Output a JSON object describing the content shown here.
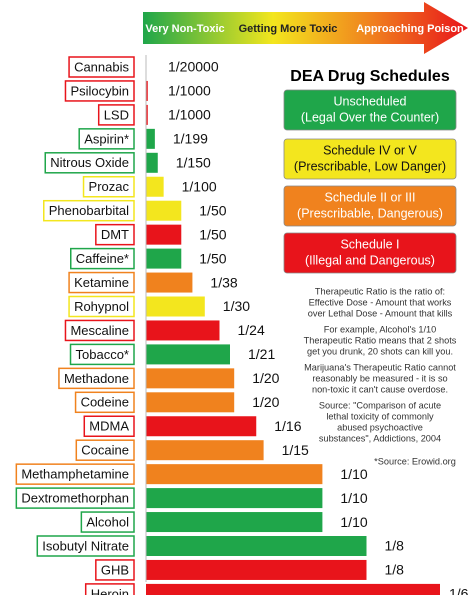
{
  "chart_data": {
    "type": "bar",
    "orientation": "horizontal",
    "title": "DEA Drug Schedules",
    "header": [
      "Very Non-Toxic",
      "Getting More Toxic",
      "Approaching Poison"
    ],
    "categories": [
      "Cannabis",
      "Psilocybin",
      "LSD",
      "Aspirin*",
      "Nitrous Oxide",
      "Prozac",
      "Phenobarbital",
      "DMT",
      "Caffeine*",
      "Ketamine",
      "Rohypnol",
      "Mescaline",
      "Tobacco*",
      "Methadone",
      "Codeine",
      "MDMA",
      "Cocaine",
      "Methamphetamine",
      "Dextromethorphan",
      "Alcohol",
      "Isobutyl Nitrate",
      "GHB",
      "Heroin"
    ],
    "values": [
      5e-05,
      0.001,
      0.001,
      0.005025,
      0.006667,
      0.01,
      0.02,
      0.02,
      0.02,
      0.026316,
      0.033333,
      0.041667,
      0.047619,
      0.05,
      0.05,
      0.0625,
      0.066667,
      0.1,
      0.1,
      0.1,
      0.125,
      0.125,
      0.166667
    ],
    "value_labels": [
      "1/20000",
      "1/1000",
      "1/1000",
      "1/199",
      "1/150",
      "1/100",
      "1/50",
      "1/50",
      "1/50",
      "1/38",
      "1/30",
      "1/24",
      "1/21",
      "1/20",
      "1/20",
      "1/16",
      "1/15",
      "1/10",
      "1/10",
      "1/10",
      "1/8",
      "1/8",
      "1/6"
    ],
    "colors": [
      "#e8141b",
      "#e8141b",
      "#e8141b",
      "#1fa64a",
      "#1fa64a",
      "#f3e61e",
      "#f3e61e",
      "#e8141b",
      "#1fa64a",
      "#f0821e",
      "#f3e61e",
      "#e8141b",
      "#1fa64a",
      "#f0821e",
      "#f0821e",
      "#e8141b",
      "#f0821e",
      "#f0821e",
      "#1fa64a",
      "#1fa64a",
      "#1fa64a",
      "#e8141b",
      "#e8141b"
    ],
    "legend": [
      {
        "lines": [
          "Unscheduled",
          "(Legal Over the Counter)"
        ],
        "color": "#1fa64a"
      },
      {
        "lines": [
          "Schedule IV or V",
          "(Prescribable, Low Danger)"
        ],
        "color": "#f3e61e"
      },
      {
        "lines": [
          "Schedule II or III",
          "(Prescribable, Dangerous)"
        ],
        "color": "#f0821e"
      },
      {
        "lines": [
          "Schedule I",
          "(Illegal and Dangerous)"
        ],
        "color": "#e8141b"
      }
    ],
    "notes": [
      {
        "lines": [
          "Therapeutic Ratio is the ratio of:",
          "Effective Dose - Amount that works",
          "over Lethal Dose - Amount that kills"
        ]
      },
      {
        "lines": [
          "For example, Alcohol's 1/10",
          "Therapeutic Ratio means that 2 shots",
          "get you drunk, 20 shots can kill you."
        ]
      },
      {
        "lines": [
          "Marijuana's Therapeutic Ratio cannot",
          "reasonably be measured - it is so",
          "non-toxic it can't cause overdose."
        ]
      },
      {
        "lines": [
          "Source: \"Comparison of acute",
          "lethal toxicity of commonly",
          "abused psychoactive",
          "substances\", Addictions, 2004"
        ]
      },
      {
        "lines": [
          "*Source: Erowid.org"
        ]
      }
    ]
  }
}
